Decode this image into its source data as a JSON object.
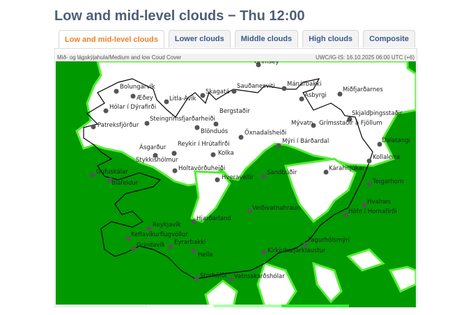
{
  "title": "Low and mid-level clouds − Thu 12:00",
  "tabs": [
    {
      "label": "Low and mid-level clouds",
      "active": true
    },
    {
      "label": "Lower clouds",
      "active": false
    },
    {
      "label": "Middle clouds",
      "active": false
    },
    {
      "label": "High clouds",
      "active": false
    },
    {
      "label": "Composite",
      "active": false
    }
  ],
  "map": {
    "caption_left": "Mið- og lágskýjahula/Medium and low Coud Cover",
    "caption_right": "UWC/IG-IS: 16.10.2025 06:00 UTC (+6)",
    "colors": {
      "cloud": "#009900",
      "cloud_light": "#55ee33",
      "clear": "#ffffff",
      "coast": "#000000"
    },
    "stations": [
      "Grímsey",
      "Bolungarvík",
      "Æðey",
      "Hólar í Dýrafirði",
      "Patreksfjörður",
      "Litla-Ávík",
      "Skagatá",
      "Sauðanesviti",
      "Mánárbakki",
      "Ásbyrgi",
      "Miðfjarðarnes",
      "Steingrímsfjarðarheiði",
      "Bergstaðir",
      "Blönduós",
      "Skjaldþingsstaðir",
      "Grímsstaðir á Fjöllum",
      "Mývatn",
      "Öxnadalsheiði",
      "Mýri í Bárðardal",
      "Dalatangi",
      "Ásgarður",
      "Reykir í Hrútafirði",
      "Kolka",
      "Kollaleira",
      "Stykkishólmur",
      "Holtavörðuheiði",
      "Kárahnjúkar",
      "Gufuskálar",
      "Bláfeldur",
      "Hveravellir",
      "Sandbúðir",
      "Teigarhorn",
      "Veiðivatnahraun",
      "Hvalnes",
      "Höfn í Hornafirði",
      "Hjarðarland",
      "Reykjavík",
      "Keflavíkurflugvöllur",
      "Grindavík",
      "Eyrarbakki",
      "Hella",
      "Fagurhólsmýri",
      "Kirkjubæjarklaustur",
      "Stórhöfði",
      "Vatnsskarðshólar"
    ]
  }
}
